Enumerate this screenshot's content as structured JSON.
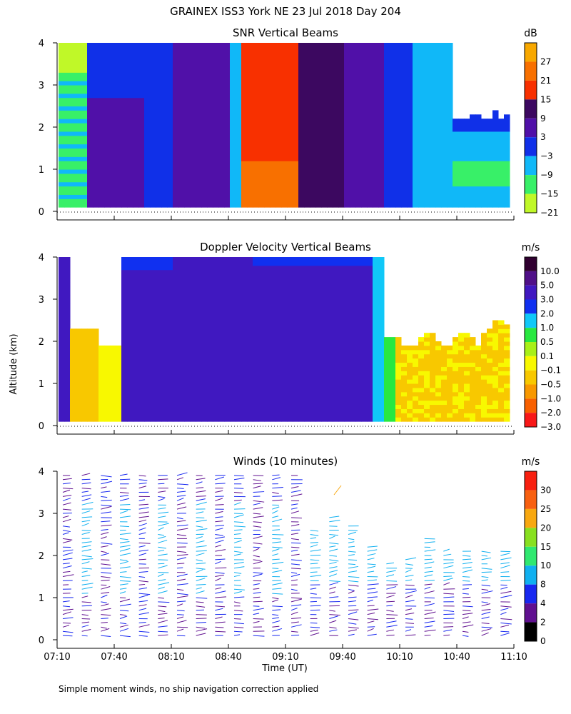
{
  "title": "GRAINEX ISS3 York NE  23 Jul 2018 Day 204",
  "footer": "Simple moment winds, no ship navigation correction applied",
  "y_axis_label": "Altitude (km)",
  "x_axis_label": "Time (UT)",
  "chart_data": [
    {
      "type": "heatmap",
      "title": "SNR Vertical Beams",
      "ylabel": "Altitude (km)",
      "ylim": [
        0,
        4
      ],
      "yticks": [
        "0",
        "1",
        "2",
        "3",
        "4"
      ],
      "colorbar": {
        "unit": "dB",
        "labels": [
          "27",
          "21",
          "15",
          "9",
          "3",
          "−3",
          "−9",
          "−15",
          "−21"
        ],
        "colors": [
          "#f8a800",
          "#f87000",
          "#f83000",
          "#3c0860",
          "#5010a8",
          "#1030e8",
          "#10b8f8",
          "#38f068",
          "#c0f828"
        ]
      },
      "x_range": [
        "07:10",
        "11:10"
      ]
    },
    {
      "type": "heatmap",
      "title": "Doppler Velocity Vertical Beams",
      "ylabel": "Altitude (km)",
      "ylim": [
        0,
        4
      ],
      "yticks": [
        "0",
        "1",
        "2",
        "3",
        "4"
      ],
      "colorbar": {
        "unit": "m/s",
        "labels": [
          "10.0",
          "5.0",
          "3.0",
          "2.0",
          "1.0",
          "0.5",
          "0.1",
          "−0.1",
          "−0.5",
          "−1.0",
          "−2.0",
          "−3.0"
        ],
        "colors": [
          "#300030",
          "#501088",
          "#4018c0",
          "#1030f0",
          "#10c8f8",
          "#28e840",
          "#a8f018",
          "#f8f800",
          "#f8c800",
          "#f89800",
          "#f86000",
          "#f81818"
        ]
      },
      "x_range": [
        "07:10",
        "11:10"
      ]
    },
    {
      "type": "scatter",
      "title": "Winds (10 minutes)",
      "ylabel": "Altitude (km)",
      "ylim": [
        0,
        4
      ],
      "yticks": [
        "0",
        "1",
        "2",
        "3",
        "4"
      ],
      "colorbar": {
        "unit": "m/s",
        "labels": [
          "30",
          "25",
          "20",
          "15",
          "10",
          "8",
          "4",
          "2",
          "0"
        ],
        "colors": [
          "#f82010",
          "#f86010",
          "#f8a810",
          "#88e020",
          "#30e870",
          "#10b0f0",
          "#1828f0",
          "#601090",
          "#000000"
        ]
      },
      "xlabel": "Time (UT)",
      "xticks": [
        "07:10",
        "07:40",
        "08:10",
        "08:40",
        "09:10",
        "09:40",
        "10:10",
        "10:40",
        "11:10"
      ]
    }
  ]
}
